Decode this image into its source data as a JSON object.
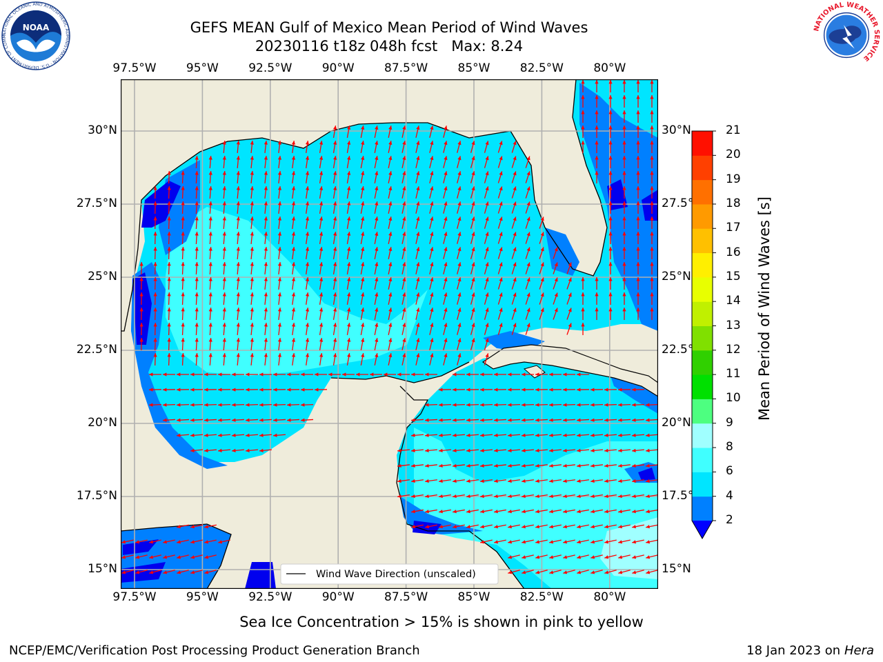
{
  "header": {
    "title_line1": "GEFS MEAN Gulf of Mexico Mean Period of Wind Waves",
    "title_line2": "20230116 t18z 048h fcst   Max: 8.24"
  },
  "logos": {
    "noaa": {
      "text": "NOAA",
      "ring_text": "NATIONAL OCEANIC AND ATMOSPHERIC ADMINISTRATION · U.S. DEPARTMENT OF COMMERCE"
    },
    "nws": {
      "ring_text": "NATIONAL WEATHER SERVICE"
    }
  },
  "map": {
    "lon_ticks": [
      "97.5°W",
      "95°W",
      "92.5°W",
      "90°W",
      "87.5°W",
      "85°W",
      "82.5°W",
      "80°W"
    ],
    "lat_ticks": [
      "30°N",
      "27.5°N",
      "25°N",
      "22.5°N",
      "20°N",
      "17.5°N",
      "15°N"
    ],
    "legend_label": "Wind Wave Direction (unscaled)",
    "colors": {
      "land": "#efecdb",
      "coast": "#000000",
      "grid": "#b0b0b0",
      "arrow": "#ff0000",
      "sea_2_4": "#0080ff",
      "sea_4_6": "#00e5ff",
      "sea_6_8": "#40ffff",
      "sea_8_9": "#a0ffff",
      "sea_lt2": "#0000ee"
    },
    "icon": "wind-wave-direction-arrow"
  },
  "colorbar": {
    "label": "Mean Period of Wind Waves [s]",
    "ticks": [
      "2",
      "4",
      "6",
      "8",
      "9",
      "10",
      "11",
      "12",
      "13",
      "14",
      "15",
      "16",
      "17",
      "18",
      "19",
      "20",
      "21"
    ],
    "colors": [
      "#0000ff",
      "#0080ff",
      "#00e5ff",
      "#40ffff",
      "#a0ffff",
      "#4dff80",
      "#00e000",
      "#30d000",
      "#80e000",
      "#c0f000",
      "#e8ff00",
      "#ffef00",
      "#ffc000",
      "#ff9a00",
      "#ff7000",
      "#ff4000",
      "#ff1000"
    ]
  },
  "notes": {
    "sea_ice": "Sea Ice Concentration > 15% is shown in pink to yellow"
  },
  "footer": {
    "left": "NCEP/EMC/Verification Post Processing Product Generation Branch",
    "right_date": "18 Jan 2023 on ",
    "right_host": "Hera"
  }
}
